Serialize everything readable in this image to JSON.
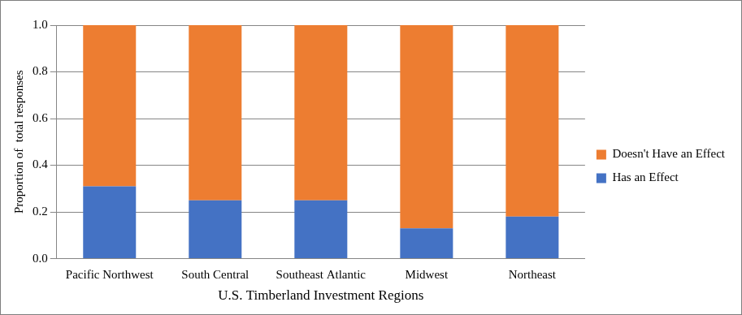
{
  "chart_data": {
    "type": "bar",
    "stacked": true,
    "grid": true,
    "legend": "right",
    "x_label": "U.S. Timberland Investment Regions",
    "y_label": "Proportion of  total responses",
    "categories": [
      "Pacific Northwest",
      "South Central",
      "Southeast Atlantic",
      "Midwest",
      "Northeast"
    ],
    "series": [
      {
        "name": "Has an Effect",
        "color": "#4472c4",
        "values": [
          0.31,
          0.25,
          0.25,
          0.13,
          0.18
        ]
      },
      {
        "name": "Doesn't Have an Effect",
        "color": "#ed7d31",
        "values": [
          0.69,
          0.75,
          0.75,
          0.87,
          0.82
        ]
      }
    ],
    "ylim": [
      0,
      1
    ],
    "yticks": [
      {
        "value": 0,
        "label": "0.0"
      },
      {
        "value": 0.2,
        "label": "0.2"
      },
      {
        "value": 0.4,
        "label": "0.4"
      },
      {
        "value": 0.6,
        "label": "0.6"
      },
      {
        "value": 0.8,
        "label": "0.8"
      },
      {
        "value": 1,
        "label": "1.0"
      }
    ]
  }
}
